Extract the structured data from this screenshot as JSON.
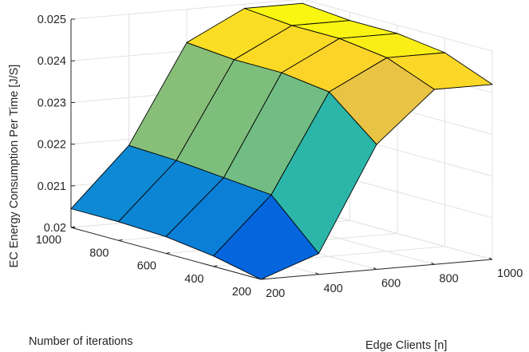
{
  "chart_data": {
    "type": "surface",
    "title": "",
    "xlabel": "Edge Clients [n]",
    "ylabel": "Number of iterations",
    "zlabel": "EC Energy Consumption Per Time [J/S]",
    "x": [
      200,
      400,
      600,
      800,
      1000
    ],
    "y": [
      200,
      400,
      600,
      800,
      1000
    ],
    "z": [
      [
        0.02,
        0.0205,
        0.023,
        0.0242,
        0.0242
      ],
      [
        0.02025,
        0.0216,
        0.02395,
        0.02465,
        0.02465
      ],
      [
        0.0204,
        0.0217,
        0.0241,
        0.0248,
        0.0248
      ],
      [
        0.02045,
        0.0218,
        0.0241,
        0.0248,
        0.0248
      ],
      [
        0.02045,
        0.02185,
        0.0242,
        0.0249,
        0.0249
      ]
    ],
    "z_row_index": "y",
    "z_col_index": "x",
    "xlim": [
      200,
      1000
    ],
    "ylim": [
      200,
      1000
    ],
    "zlim": [
      0.02,
      0.025
    ],
    "x_ticks": [
      "200",
      "400",
      "600",
      "800",
      "1000"
    ],
    "y_ticks": [
      "200",
      "400",
      "600",
      "800",
      "1000"
    ],
    "z_ticks": [
      "0.02",
      "0.021",
      "0.022",
      "0.023",
      "0.024",
      "0.025"
    ],
    "grid": true,
    "colormap": "parula",
    "colormap_stops": [
      "#352a87",
      "#0268e1",
      "#108ed2",
      "#0fb0c1",
      "#38b99e",
      "#92bf73",
      "#d9ba56",
      "#fcce2e",
      "#f9fb0e"
    ]
  }
}
